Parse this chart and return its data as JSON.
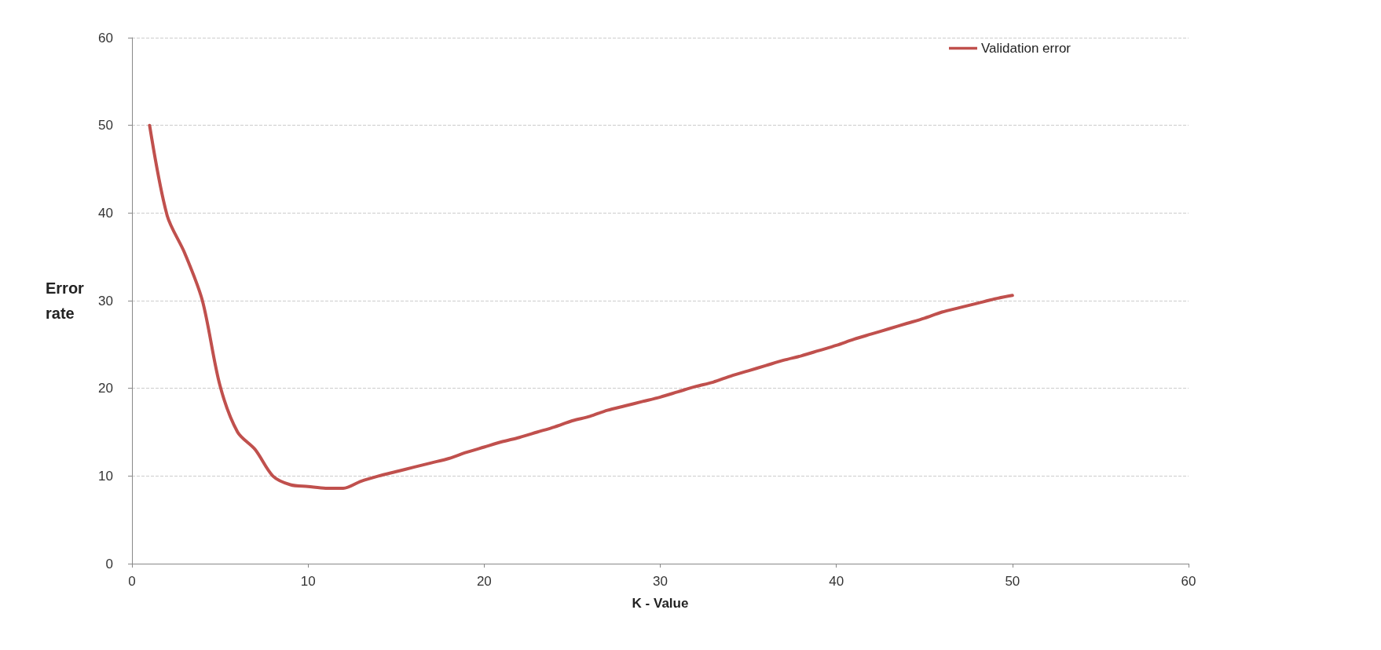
{
  "chart_data": {
    "type": "line",
    "xlabel": "K - Value",
    "ylabel": "Error\nrate",
    "x": [
      1,
      2,
      3,
      4,
      5,
      6,
      7,
      8,
      9,
      10,
      11,
      12,
      13,
      14,
      15,
      16,
      17,
      18,
      19,
      20,
      21,
      22,
      23,
      24,
      25,
      26,
      27,
      28,
      29,
      30,
      31,
      32,
      33,
      34,
      35,
      36,
      37,
      38,
      39,
      40,
      41,
      42,
      43,
      44,
      45,
      46,
      47,
      48,
      49,
      50
    ],
    "series": [
      {
        "name": "Validation error",
        "color": "#c0504d",
        "values": [
          50,
          39.7,
          35.4,
          30,
          20.3,
          15,
          13,
          10,
          9,
          8.8,
          8.6,
          8.6,
          9.4,
          10,
          10.5,
          11,
          11.5,
          12,
          12.7,
          13.3,
          13.9,
          14.4,
          15,
          15.6,
          16.3,
          16.8,
          17.5,
          18,
          18.5,
          19,
          19.6,
          20.2,
          20.7,
          21.4,
          22,
          22.6,
          23.2,
          23.7,
          24.3,
          24.9,
          25.6,
          26.2,
          26.8,
          27.4,
          28,
          28.7,
          29.2,
          29.7,
          30.2,
          30.6
        ]
      }
    ],
    "xlim": [
      0,
      60
    ],
    "xticks": [
      0,
      10,
      20,
      30,
      40,
      50,
      60
    ],
    "ylim": [
      0,
      60
    ],
    "yticks": [
      0,
      10,
      20,
      30,
      40,
      50,
      60
    ],
    "grid": "y",
    "legend": "top right",
    "marker": "none",
    "line_style": "solid"
  }
}
